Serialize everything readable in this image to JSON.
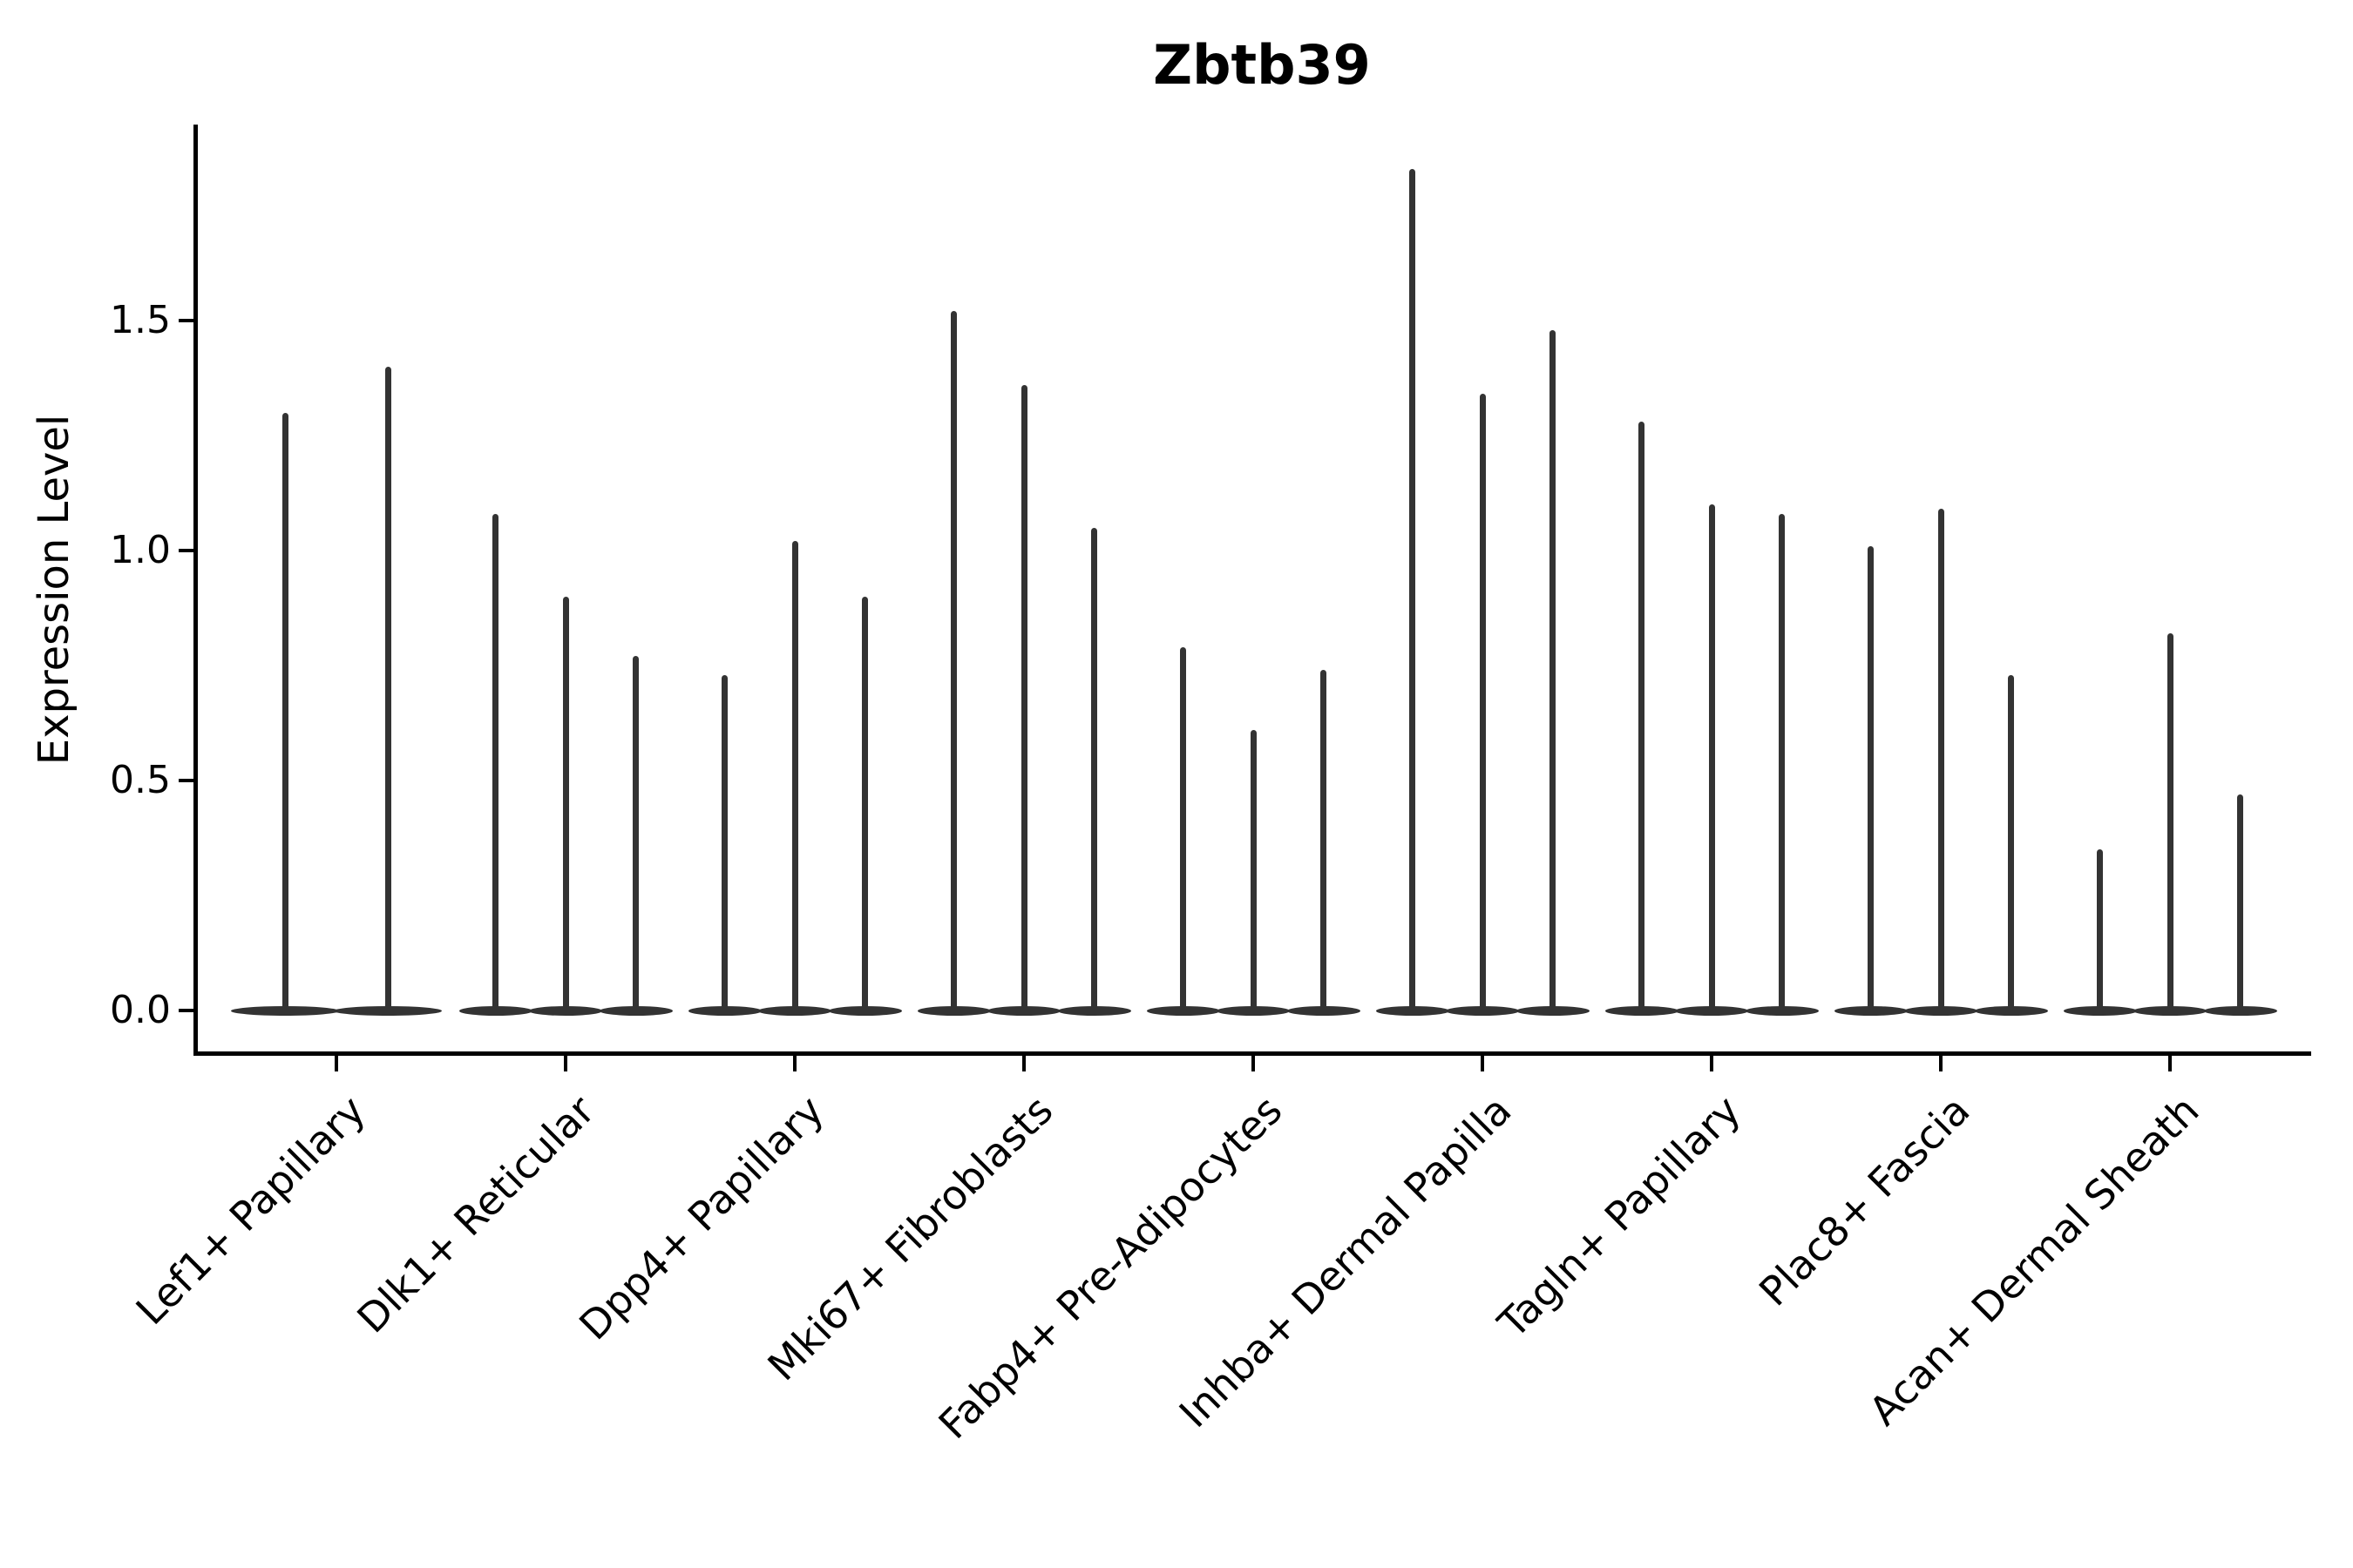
{
  "title": "Zbtb39",
  "chart_data": {
    "type": "violin",
    "title": "Zbtb39",
    "xlabel": "",
    "ylabel": "Expression Level",
    "ylim": [
      0,
      1.92
    ],
    "yticks": [
      0.0,
      0.5,
      1.0,
      1.5
    ],
    "grid": false,
    "legend": "none",
    "description": "Single-cell gene expression violin plot; each cluster shows narrow spike-shaped violins (bulk of cells at 0, thin tail up to max expression).",
    "categories": [
      "Lef1+ Papillary",
      "Dlk1+ Reticular",
      "Dpp4+ Papillary",
      "Mki67+ Fibroblasts",
      "Fabp4+ Pre-Adipocytes",
      "Inhba+ Dermal Papilla",
      "Tagln+ Papillary",
      "Plac8+ Fascia",
      "Acan+ Dermal Sheath"
    ],
    "groups": [
      {
        "category": "Lef1+ Papillary",
        "violin_max_values": [
          1.3,
          1.4
        ]
      },
      {
        "category": "Dlk1+ Reticular",
        "violin_max_values": [
          1.08,
          0.9,
          0.77
        ]
      },
      {
        "category": "Dpp4+ Papillary",
        "violin_max_values": [
          0.73,
          1.02,
          0.9
        ]
      },
      {
        "category": "Mki67+ Fibroblasts",
        "violin_max_values": [
          1.52,
          1.36,
          1.05
        ]
      },
      {
        "category": "Fabp4+ Pre-Adipocytes",
        "violin_max_values": [
          0.79,
          0.61,
          0.74
        ]
      },
      {
        "category": "Inhba+ Dermal Papilla",
        "violin_max_values": [
          1.83,
          1.34,
          1.48
        ]
      },
      {
        "category": "Tagln+ Papillary",
        "violin_max_values": [
          1.28,
          1.1,
          1.08
        ]
      },
      {
        "category": "Plac8+ Fascia",
        "violin_max_values": [
          1.01,
          1.09,
          0.73
        ]
      },
      {
        "category": "Acan+ Dermal Sheath",
        "violin_max_values": [
          0.35,
          0.82,
          0.47
        ]
      }
    ],
    "violin_color": "#333333",
    "axis_color": "#000000",
    "background_color": "#ffffff"
  }
}
